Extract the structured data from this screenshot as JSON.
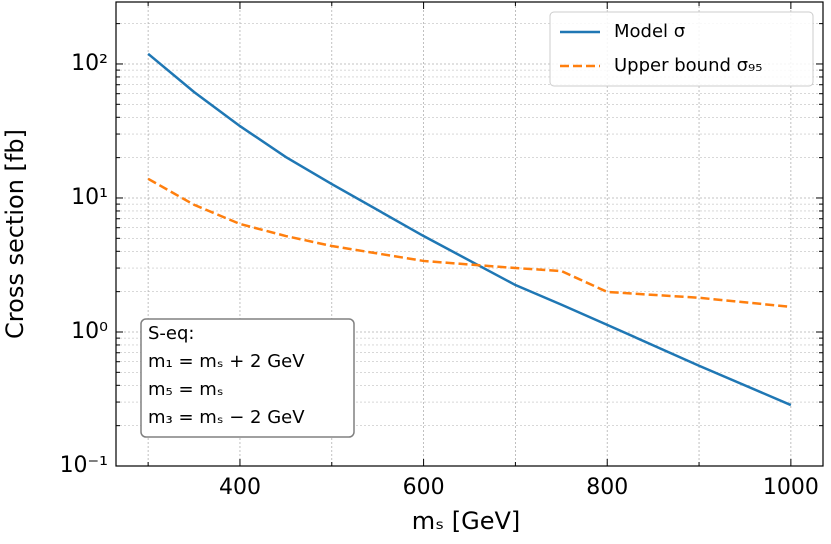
{
  "chart_data": {
    "type": "line",
    "xlabel": "mₛ [GeV]",
    "ylabel": "Cross section [fb]",
    "log_y": true,
    "grid": true,
    "legend": "upper right",
    "xlim": [
      265,
      1035
    ],
    "xticks": [
      400,
      600,
      800,
      1000
    ],
    "xminor_ticks": [
      300,
      500,
      700,
      900
    ],
    "ylim": [
      0.1,
      290
    ],
    "yticks": [
      {
        "value": 0.1,
        "label": "10⁻¹"
      },
      {
        "value": 1,
        "label": "10⁰"
      },
      {
        "value": 10,
        "label": "10¹"
      },
      {
        "value": 100,
        "label": "10²"
      }
    ],
    "yminor_ticks": [
      0.2,
      0.3,
      0.4,
      0.5,
      0.6,
      0.7,
      0.8,
      0.9,
      2,
      3,
      4,
      5,
      6,
      7,
      8,
      9,
      20,
      30,
      40,
      50,
      60,
      70,
      80,
      90,
      200
    ],
    "x": [
      300,
      350,
      400,
      450,
      500,
      600,
      700,
      750,
      800,
      900,
      1000
    ],
    "series": [
      {
        "name": "Model σ",
        "color": "#1f77b4",
        "dash": false,
        "values": [
          119,
          61.8,
          34.4,
          20.2,
          12.7,
          5.2,
          2.24,
          1.6,
          1.13,
          0.56,
          0.285
        ]
      },
      {
        "name": "Upper bound σ₉₅",
        "color": "#ff7f0e",
        "dash": true,
        "values": [
          13.9,
          8.9,
          6.4,
          5.2,
          4.38,
          3.39,
          3.0,
          2.85,
          1.99,
          1.8,
          1.54
        ]
      }
    ],
    "annotation": [
      "S-eq:",
      "m₁ = mₛ + 2 GeV",
      "m₅ = mₛ",
      "m₃ = mₛ − 2 GeV"
    ]
  }
}
